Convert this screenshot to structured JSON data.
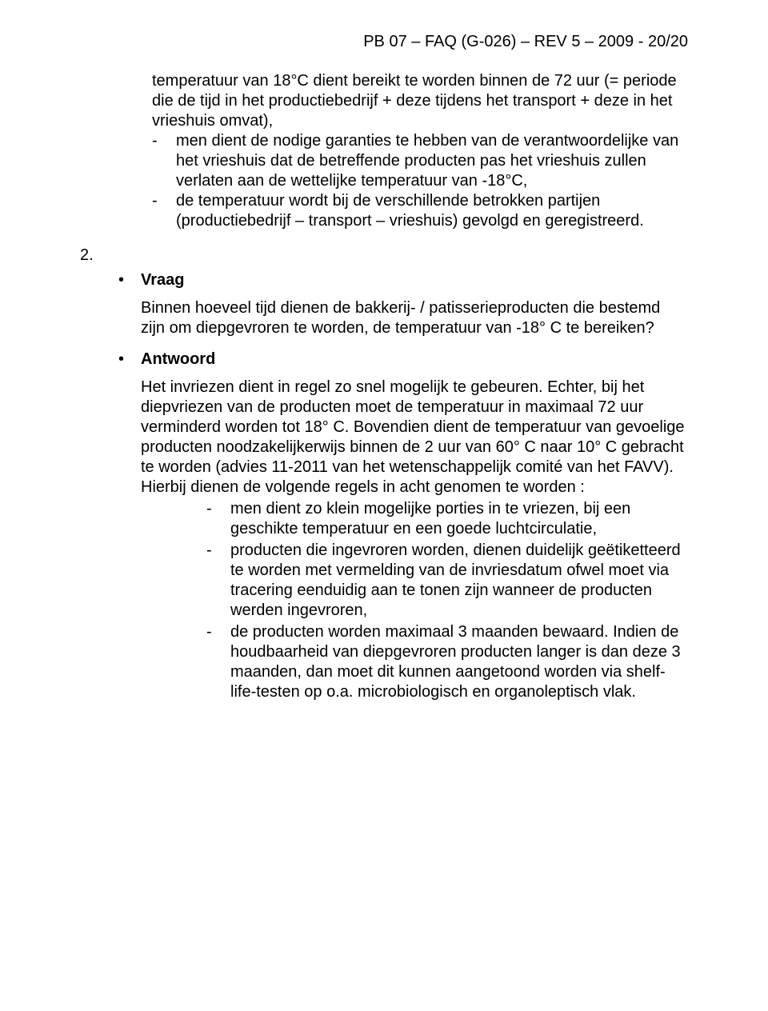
{
  "header": "PB 07 – FAQ (G-026) – REV 5 – 2009 - 20/20",
  "top_block": {
    "lead": "temperatuur van 18°C dient bereikt te worden binnen de 72 uur  (= periode die de tijd in het productiebedrijf + deze tijdens het transport + deze in het vrieshuis omvat),",
    "dash1": "men dient de nodige garanties te hebben van de verantwoordelijke van het vrieshuis dat de betreffende producten pas het vrieshuis zullen verlaten aan de wettelijke temperatuur van -18°C,",
    "dash2": "de temperatuur wordt bij de verschillende betrokken partijen (productiebedrijf – transport – vrieshuis) gevolgd en geregistreerd."
  },
  "item_number": "2.",
  "vraag_label": "Vraag",
  "vraag_text": "Binnen hoeveel tijd dienen de bakkerij- / patisserieproducten die bestemd zijn om diepgevroren te worden, de temperatuur van -18° C te bereiken?",
  "antwoord_label": "Antwoord",
  "antwoord_p1": "Het invriezen dient in regel zo snel mogelijk te gebeuren. Echter, bij het diepvriezen van de producten moet de temperatuur in maximaal 72 uur verminderd worden tot 18° C. Bovendien dient de temperatuur van gevoelige producten noodzakelijkerwijs binnen de 2 uur van 60° C naar 10° C gebracht te worden (advies 11-2011 van het wetenschappelijk comité van het FAVV).",
  "antwoord_p2": "Hierbij dienen de volgende regels in acht genomen te worden :",
  "rules": {
    "r1": "men dient zo klein mogelijke porties in te vriezen, bij een geschikte temperatuur en een goede luchtcirculatie,",
    "r2": "producten die ingevroren worden, dienen duidelijk geëtiketteerd te worden met vermelding van de invriesdatum ofwel moet via tracering eenduidig aan te tonen zijn wanneer de producten werden ingevroren,",
    "r3": "de producten worden maximaal 3 maanden bewaard. Indien de houdbaarheid van diepgevroren producten langer is dan deze 3 maanden, dan moet dit kunnen aangetoond worden via shelf-life-testen op o.a. microbiologisch en organoleptisch vlak."
  }
}
